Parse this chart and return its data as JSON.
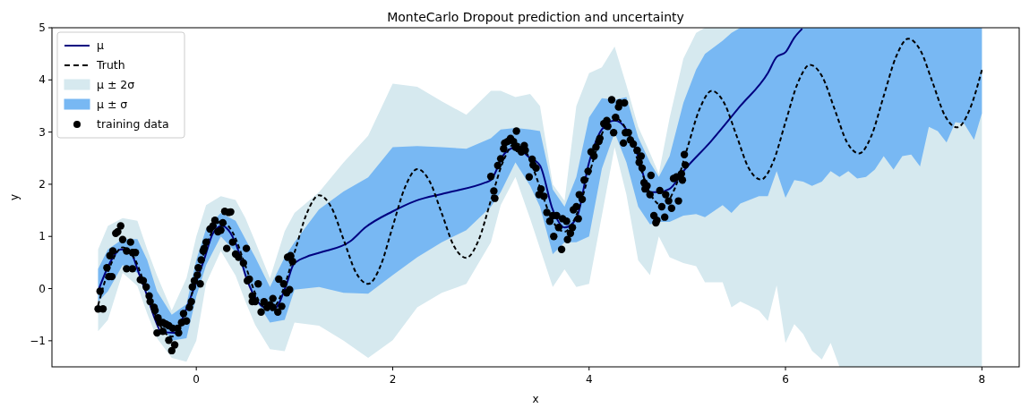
{
  "chart_data": {
    "type": "line",
    "title": "MonteCarlo Dropout prediction and uncertainty",
    "xlabel": "x",
    "ylabel": "y",
    "xlim": [
      -1.47,
      8.38
    ],
    "ylim": [
      -1.5,
      5
    ],
    "xticks": [
      0,
      2,
      4,
      6,
      8
    ],
    "yticks": [
      {
        "value": -1,
        "label": "−1"
      },
      0,
      1,
      2,
      3,
      4,
      5
    ],
    "legend": "top left",
    "series": [
      {
        "name": "μ ± 2σ",
        "type": "line",
        "color": "#d6e9ef",
        "values": [
          null,
          null,
          null,
          null,
          null,
          null,
          null,
          null,
          null,
          null,
          null,
          null,
          null,
          null,
          null,
          null,
          null,
          null,
          null,
          null,
          null,
          null,
          null,
          null,
          null,
          null,
          null,
          null,
          null,
          null,
          null,
          null,
          null,
          null,
          null,
          null,
          null,
          null,
          null,
          null,
          null,
          null,
          null,
          null,
          null,
          null,
          null,
          null,
          null,
          null,
          null,
          null,
          null,
          null,
          null,
          null,
          null,
          null,
          null,
          null,
          null,
          null,
          null,
          null,
          null,
          null,
          null,
          null,
          null,
          null,
          null,
          null
        ],
        "x": [
          -1,
          -0.9,
          -0.75,
          -0.6,
          -0.5,
          -0.4,
          -0.25,
          -0.1,
          0,
          0.1,
          0.25,
          0.4,
          0.5,
          0.6,
          0.75,
          0.9,
          1.0,
          1.25,
          1.5,
          1.75,
          2.0,
          2.25,
          2.5,
          2.75,
          3.0,
          3.1,
          3.25,
          3.4,
          3.5,
          3.63,
          3.75,
          3.87,
          4.0,
          4.13,
          4.26,
          4.38,
          4.5,
          4.62,
          4.71,
          4.82,
          4.96,
          5.09,
          5.18,
          5.36,
          5.45,
          5.54,
          5.73,
          5.82,
          5.91,
          6.0,
          6.09,
          6.18,
          6.27,
          6.37,
          6.46,
          6.55,
          6.64,
          6.73,
          6.82,
          6.91,
          7.0,
          7.1,
          7.19,
          7.28,
          7.37,
          7.46,
          7.55,
          7.64,
          7.73,
          7.82,
          7.92,
          8.0
        ],
        "lower": [
          -0.82,
          -0.6,
          0.3,
          0.05,
          -0.48,
          -0.95,
          -1.33,
          -1.4,
          -1.0,
          0.1,
          0.72,
          0.25,
          -0.25,
          -0.7,
          -1.16,
          -1.2,
          -0.65,
          -0.71,
          -1.0,
          -1.33,
          -0.99,
          -0.36,
          -0.08,
          0.09,
          0.89,
          1.6,
          2.14,
          1.34,
          0.77,
          0.03,
          0.37,
          0.03,
          0.09,
          1.4,
          2.71,
          1.8,
          0.54,
          0.26,
          1.0,
          0.6,
          0.49,
          0.43,
          0.12,
          0.12,
          -0.36,
          -0.25,
          -0.42,
          -0.62,
          0.06,
          -1.04,
          -0.68,
          -0.87,
          -1.19,
          -1.36,
          -1.04,
          -1.5,
          -1.5,
          -1.5,
          -1.5,
          -1.5,
          -1.5,
          -1.5,
          -1.5,
          -1.5,
          -1.5,
          -1.5,
          -1.5,
          -1.5,
          -1.5,
          -1.5,
          -1.5,
          -1.5
        ],
        "upper": [
          0.75,
          1.2,
          1.35,
          1.3,
          0.75,
          0.25,
          -0.42,
          0.2,
          1.0,
          1.6,
          1.77,
          1.7,
          1.35,
          0.9,
          0.2,
          1.1,
          1.45,
          1.85,
          2.42,
          2.93,
          3.93,
          3.87,
          3.59,
          3.33,
          3.79,
          3.79,
          3.67,
          3.73,
          3.5,
          2.0,
          1.68,
          3.5,
          4.13,
          4.24,
          4.64,
          3.9,
          3.1,
          2.6,
          2.2,
          3.27,
          4.41,
          4.9,
          5,
          5,
          5,
          5,
          5,
          5,
          5,
          5,
          5,
          5,
          5,
          5,
          5,
          5,
          5,
          5,
          5,
          5,
          5,
          5,
          5,
          5,
          5,
          5,
          5,
          5,
          5,
          5,
          5,
          5
        ]
      },
      {
        "name": "μ ± σ",
        "type": "line",
        "color": "#78b8f3",
        "values": [
          null,
          null,
          null,
          null,
          null,
          null,
          null,
          null,
          null,
          null,
          null,
          null,
          null,
          null,
          null,
          null,
          null,
          null,
          null,
          null,
          null,
          null,
          null,
          null,
          null,
          null,
          null,
          null,
          null,
          null,
          null,
          null,
          null,
          null,
          null,
          null,
          null,
          null,
          null,
          null,
          null,
          null,
          null,
          null,
          null,
          null,
          null,
          null,
          null,
          null,
          null,
          null,
          null,
          null,
          null,
          null,
          null,
          null,
          null,
          null,
          null,
          null,
          null,
          null,
          null,
          null,
          null,
          null,
          null,
          null,
          null,
          null
        ],
        "x": [
          -1,
          -0.9,
          -0.75,
          -0.6,
          -0.5,
          -0.4,
          -0.25,
          -0.1,
          0,
          0.1,
          0.25,
          0.4,
          0.5,
          0.6,
          0.75,
          0.9,
          1.0,
          1.25,
          1.5,
          1.75,
          2.0,
          2.25,
          2.5,
          2.75,
          3.0,
          3.1,
          3.25,
          3.4,
          3.5,
          3.63,
          3.75,
          3.87,
          4.0,
          4.13,
          4.26,
          4.38,
          4.5,
          4.62,
          4.71,
          4.82,
          4.96,
          5.09,
          5.18,
          5.36,
          5.45,
          5.54,
          5.73,
          5.82,
          5.91,
          6.0,
          6.09,
          6.18,
          6.27,
          6.37,
          6.46,
          6.55,
          6.64,
          6.73,
          6.82,
          6.91,
          7.0,
          7.1,
          7.19,
          7.28,
          7.37,
          7.46,
          7.55,
          7.64,
          7.73,
          7.82,
          7.92,
          8.0
        ],
        "lower": [
          -0.25,
          -0.05,
          0.45,
          0.3,
          -0.05,
          -0.6,
          -1.0,
          -0.95,
          -0.15,
          0.45,
          1.0,
          0.7,
          0.26,
          -0.2,
          -0.65,
          -0.6,
          -0.02,
          0.03,
          -0.08,
          -0.1,
          0.26,
          0.6,
          0.89,
          1.12,
          1.57,
          1.85,
          2.42,
          1.97,
          1.57,
          0.66,
          0.89,
          0.89,
          1.0,
          2.3,
          2.99,
          2.42,
          1.57,
          1.23,
          1.28,
          1.28,
          1.4,
          1.43,
          1.37,
          1.6,
          1.45,
          1.63,
          1.77,
          1.77,
          2.25,
          1.74,
          2.08,
          2.05,
          1.97,
          2.05,
          2.25,
          2.14,
          2.25,
          2.11,
          2.14,
          2.28,
          2.54,
          2.28,
          2.54,
          2.57,
          2.34,
          3.1,
          3.02,
          2.8,
          3.19,
          3.16,
          2.85,
          3.36
        ],
        "upper": [
          0.38,
          0.75,
          0.95,
          0.95,
          0.55,
          -0.05,
          -0.5,
          -0.3,
          0.55,
          1.15,
          1.45,
          1.3,
          0.95,
          0.6,
          0.03,
          0.6,
          0.89,
          1.52,
          1.86,
          2.13,
          2.71,
          2.73,
          2.71,
          2.68,
          2.88,
          3.05,
          3.08,
          3.05,
          3.02,
          1.9,
          1.57,
          2.14,
          3.28,
          3.65,
          3.62,
          3.67,
          2.9,
          2.42,
          2.14,
          2.54,
          3.56,
          4.2,
          4.5,
          4.75,
          4.9,
          5,
          5,
          5,
          5,
          5,
          5,
          5,
          5,
          5,
          5,
          5,
          5,
          5,
          5,
          5,
          5,
          5,
          5,
          5,
          5,
          5,
          5,
          5,
          5,
          5,
          5,
          5
        ]
      },
      {
        "name": "μ",
        "color": "#000080",
        "x": [
          -1,
          -0.86,
          -0.77,
          -0.66,
          -0.59,
          -0.5,
          -0.42,
          -0.36,
          -0.22,
          -0.16,
          -0.04,
          0.08,
          0.17,
          0.26,
          0.35,
          0.43,
          0.5,
          0.59,
          0.71,
          0.8,
          0.92,
          0.99,
          1.11,
          1.26,
          1.57,
          1.72,
          2.0,
          2.23,
          2.54,
          2.94,
          3.0,
          3.14,
          3.26,
          3.38,
          3.5,
          3.63,
          3.75,
          3.87,
          4.0,
          4.13,
          4.26,
          4.38,
          4.5,
          4.62,
          4.71,
          4.82,
          4.96,
          5.24,
          5.54,
          5.82,
          5.91,
          6.0,
          6.09,
          6.17
        ],
        "values": [
          -0.05,
          0.56,
          0.75,
          0.66,
          0.32,
          -0.14,
          -0.59,
          -0.82,
          -0.85,
          -0.65,
          -0.08,
          0.56,
          1.06,
          1.2,
          1.06,
          0.72,
          0.26,
          -0.14,
          -0.37,
          -0.37,
          0.09,
          0.46,
          0.6,
          0.69,
          0.91,
          1.17,
          1.48,
          1.68,
          1.83,
          2.03,
          2.08,
          2.59,
          2.71,
          2.53,
          2.36,
          1.51,
          1.17,
          1.34,
          2.42,
          3.05,
          3.22,
          3.05,
          2.53,
          1.85,
          1.85,
          1.91,
          2.25,
          2.82,
          3.5,
          4.13,
          4.44,
          4.53,
          4.81,
          4.98
        ]
      },
      {
        "name": "Truth",
        "line_style": "dashed",
        "color": "#000000",
        "x": [
          -1,
          -0.875,
          -0.75,
          -0.625,
          -0.5,
          -0.375,
          -0.25,
          -0.125,
          0,
          0.125,
          0.25,
          0.375,
          0.5,
          0.625,
          0.75,
          0.875,
          1,
          1.125,
          1.25,
          1.375,
          1.5,
          1.625,
          1.75,
          1.875,
          2,
          2.125,
          2.25,
          2.375,
          2.5,
          2.625,
          2.75,
          2.875,
          3,
          3.125,
          3.25,
          3.375,
          3.5,
          3.625,
          3.75,
          3.875,
          4,
          4.125,
          4.25,
          4.375,
          4.5,
          4.625,
          4.75,
          4.875,
          5,
          5.125,
          5.25,
          5.375,
          5.5,
          5.625,
          5.75,
          5.875,
          6,
          6.125,
          6.25,
          6.375,
          6.5,
          6.625,
          6.75,
          6.875,
          7,
          7.125,
          7.25,
          7.375,
          7.5,
          7.625,
          7.75,
          7.875,
          8
        ],
        "values": [
          -0.32,
          0.44,
          0.79,
          0.56,
          -0.07,
          -0.69,
          -0.92,
          -0.57,
          0.19,
          0.94,
          1.29,
          1.06,
          0.44,
          -0.19,
          -0.42,
          -0.07,
          0.69,
          1.44,
          1.79,
          1.56,
          0.94,
          0.31,
          0.09,
          0.43,
          1.19,
          1.94,
          2.29,
          2.06,
          1.44,
          0.81,
          0.59,
          0.93,
          1.69,
          2.44,
          2.79,
          2.56,
          1.94,
          1.31,
          1.09,
          1.43,
          2.19,
          2.94,
          3.29,
          3.06,
          2.44,
          1.81,
          1.59,
          1.93,
          2.69,
          3.44,
          3.79,
          3.56,
          2.94,
          2.31,
          2.09,
          2.43,
          3.19,
          3.94,
          4.29,
          4.06,
          3.44,
          2.81,
          2.59,
          2.93,
          3.69,
          4.44,
          4.79,
          4.56,
          3.94,
          3.31,
          3.09,
          3.43,
          4.19
        ]
      },
      {
        "name": "training data",
        "type": "scatter",
        "marker": "circle",
        "color": "#000000",
        "x": [
          -1.0,
          -0.95,
          -0.98,
          -0.91,
          -0.89,
          -0.86,
          -0.88,
          -0.85,
          -0.82,
          -0.8,
          -0.77,
          -0.75,
          -0.71,
          -0.67,
          -0.65,
          -0.62,
          -0.71,
          -0.65,
          -0.57,
          -0.54,
          -0.51,
          -0.48,
          -0.47,
          -0.43,
          -0.42,
          -0.39,
          -0.37,
          -0.34,
          -0.31,
          -0.28,
          -0.4,
          -0.34,
          -0.28,
          -0.25,
          -0.22,
          -0.24,
          -0.19,
          -0.18,
          -0.15,
          -0.13,
          -0.1,
          -0.07,
          -0.05,
          -0.04,
          -0.02,
          0.01,
          0.02,
          0.04,
          0.05,
          0.07,
          0.08,
          0.1,
          0.14,
          0.17,
          0.19,
          0.22,
          0.25,
          0.27,
          0.29,
          0.33,
          0.35,
          0.31,
          0.37,
          0.4,
          0.43,
          0.48,
          0.51,
          0.52,
          0.54,
          0.57,
          0.63,
          0.57,
          0.6,
          0.66,
          0.69,
          0.72,
          0.75,
          0.78,
          0.78,
          0.83,
          0.87,
          0.84,
          0.89,
          0.92,
          0.93,
          0.96,
          0.98,
          0.95,
          3.0,
          3.03,
          3.04,
          3.07,
          3.1,
          3.13,
          3.14,
          3.17,
          3.2,
          3.23,
          3.26,
          3.25,
          3.28,
          3.31,
          3.34,
          3.35,
          3.39,
          3.42,
          3.43,
          3.46,
          3.49,
          3.51,
          3.54,
          3.57,
          3.6,
          3.63,
          3.64,
          3.67,
          3.69,
          3.72,
          3.73,
          3.77,
          3.78,
          3.81,
          3.83,
          3.84,
          3.87,
          3.89,
          3.9,
          3.93,
          3.95,
          3.99,
          4.02,
          4.05,
          4.07,
          4.1,
          4.11,
          4.15,
          4.18,
          4.19,
          4.23,
          4.25,
          4.27,
          4.3,
          4.31,
          4.36,
          4.35,
          4.37,
          4.4,
          4.42,
          4.45,
          4.49,
          4.51,
          4.53,
          4.54,
          4.56,
          4.57,
          4.59,
          4.62,
          4.63,
          4.66,
          4.68,
          4.69,
          4.72,
          4.74,
          4.77,
          4.78,
          4.81,
          4.84,
          4.86,
          4.89,
          4.91,
          4.94,
          4.95,
          4.97,
          4.98
        ],
        "values": [
          -0.39,
          -0.39,
          -0.05,
          0.4,
          0.23,
          0.23,
          0.63,
          0.72,
          1.06,
          1.09,
          1.2,
          0.94,
          0.72,
          0.89,
          0.69,
          0.69,
          0.38,
          0.38,
          0.17,
          0.15,
          0.03,
          -0.14,
          -0.25,
          -0.36,
          -0.42,
          -0.56,
          -0.65,
          -0.65,
          -0.68,
          -0.71,
          -0.85,
          -0.82,
          -0.99,
          -1.19,
          -1.08,
          -0.76,
          -0.76,
          -0.85,
          -0.65,
          -0.48,
          -0.62,
          -0.36,
          -0.25,
          0.03,
          0.15,
          0.26,
          0.4,
          0.09,
          0.55,
          0.72,
          0.77,
          0.89,
          1.14,
          1.2,
          1.31,
          1.09,
          1.12,
          1.26,
          1.48,
          1.46,
          1.47,
          0.77,
          0.89,
          0.66,
          0.6,
          0.49,
          0.77,
          0.15,
          0.18,
          -0.14,
          0.09,
          -0.25,
          -0.25,
          -0.45,
          -0.25,
          -0.36,
          -0.31,
          -0.19,
          -0.36,
          -0.45,
          -0.34,
          0.18,
          0.09,
          -0.08,
          0.6,
          0.63,
          0.52,
          -0.02,
          2.15,
          1.87,
          1.73,
          2.36,
          2.49,
          2.68,
          2.79,
          2.82,
          2.88,
          2.82,
          3.02,
          2.71,
          2.68,
          2.62,
          2.74,
          2.65,
          2.14,
          2.48,
          2.37,
          2.31,
          1.8,
          1.91,
          1.77,
          1.46,
          1.29,
          1.4,
          1.0,
          1.4,
          1.17,
          0.75,
          1.34,
          1.29,
          0.94,
          1.06,
          1.17,
          1.51,
          1.57,
          1.34,
          1.8,
          1.71,
          2.08,
          2.25,
          2.62,
          2.54,
          2.71,
          2.82,
          2.88,
          3.16,
          3.22,
          3.11,
          3.62,
          2.99,
          3.28,
          3.48,
          3.56,
          3.56,
          2.79,
          2.99,
          2.99,
          2.85,
          2.77,
          2.65,
          2.42,
          2.54,
          2.31,
          2.03,
          1.91,
          1.97,
          1.8,
          2.17,
          1.4,
          1.26,
          1.31,
          1.88,
          1.57,
          1.37,
          1.8,
          1.68,
          1.54,
          2.11,
          2.14,
          1.68,
          2.2,
          2.08,
          2.57,
          2.37
        ]
      }
    ]
  }
}
